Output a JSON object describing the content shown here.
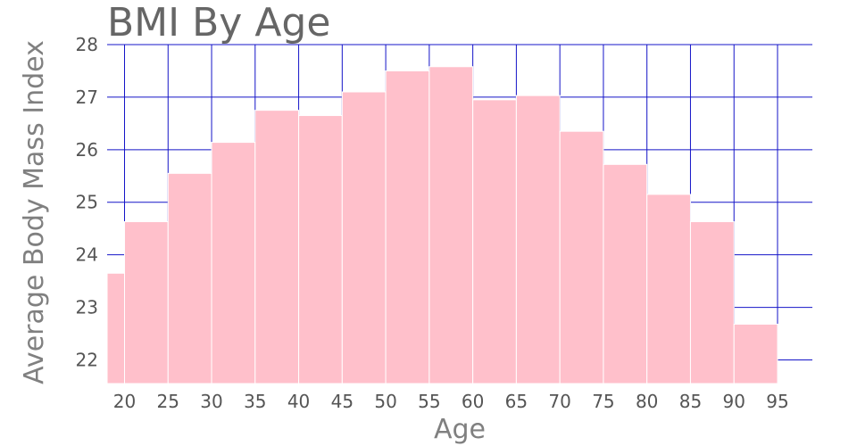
{
  "chart_data": {
    "type": "bar",
    "title": "BMI By Age",
    "xlabel": "Age",
    "ylabel": "Average Body Mass Index",
    "x_ticks": [
      "20",
      "25",
      "30",
      "35",
      "40",
      "45",
      "50",
      "55",
      "60",
      "65",
      "70",
      "75",
      "80",
      "85",
      "90",
      "95"
    ],
    "y_ticks": [
      "22",
      "23",
      "24",
      "25",
      "26",
      "27",
      "28"
    ],
    "xlim": [
      18,
      22
    ],
    "ylim": [
      21.55,
      28
    ],
    "x_range": [
      18,
      22.0
    ],
    "bins": [
      {
        "start": 18,
        "end": 20,
        "value": 23.65
      },
      {
        "start": 20,
        "end": 25,
        "value": 24.63
      },
      {
        "start": 25,
        "end": 30,
        "value": 25.55
      },
      {
        "start": 30,
        "end": 35,
        "value": 26.14
      },
      {
        "start": 35,
        "end": 40,
        "value": 26.75
      },
      {
        "start": 40,
        "end": 45,
        "value": 26.65
      },
      {
        "start": 45,
        "end": 50,
        "value": 27.1
      },
      {
        "start": 50,
        "end": 55,
        "value": 27.5
      },
      {
        "start": 55,
        "end": 60,
        "value": 27.58
      },
      {
        "start": 60,
        "end": 65,
        "value": 26.95
      },
      {
        "start": 65,
        "end": 70,
        "value": 27.03
      },
      {
        "start": 70,
        "end": 75,
        "value": 26.35
      },
      {
        "start": 75,
        "end": 80,
        "value": 25.72
      },
      {
        "start": 80,
        "end": 85,
        "value": 25.15
      },
      {
        "start": 85,
        "end": 90,
        "value": 24.63
      },
      {
        "start": 90,
        "end": 95,
        "value": 22.68
      }
    ],
    "x_max": 99,
    "grid": true,
    "colors": {
      "bar": "#ffc0cb",
      "grid": "#1414c8",
      "text": "#666666"
    }
  }
}
